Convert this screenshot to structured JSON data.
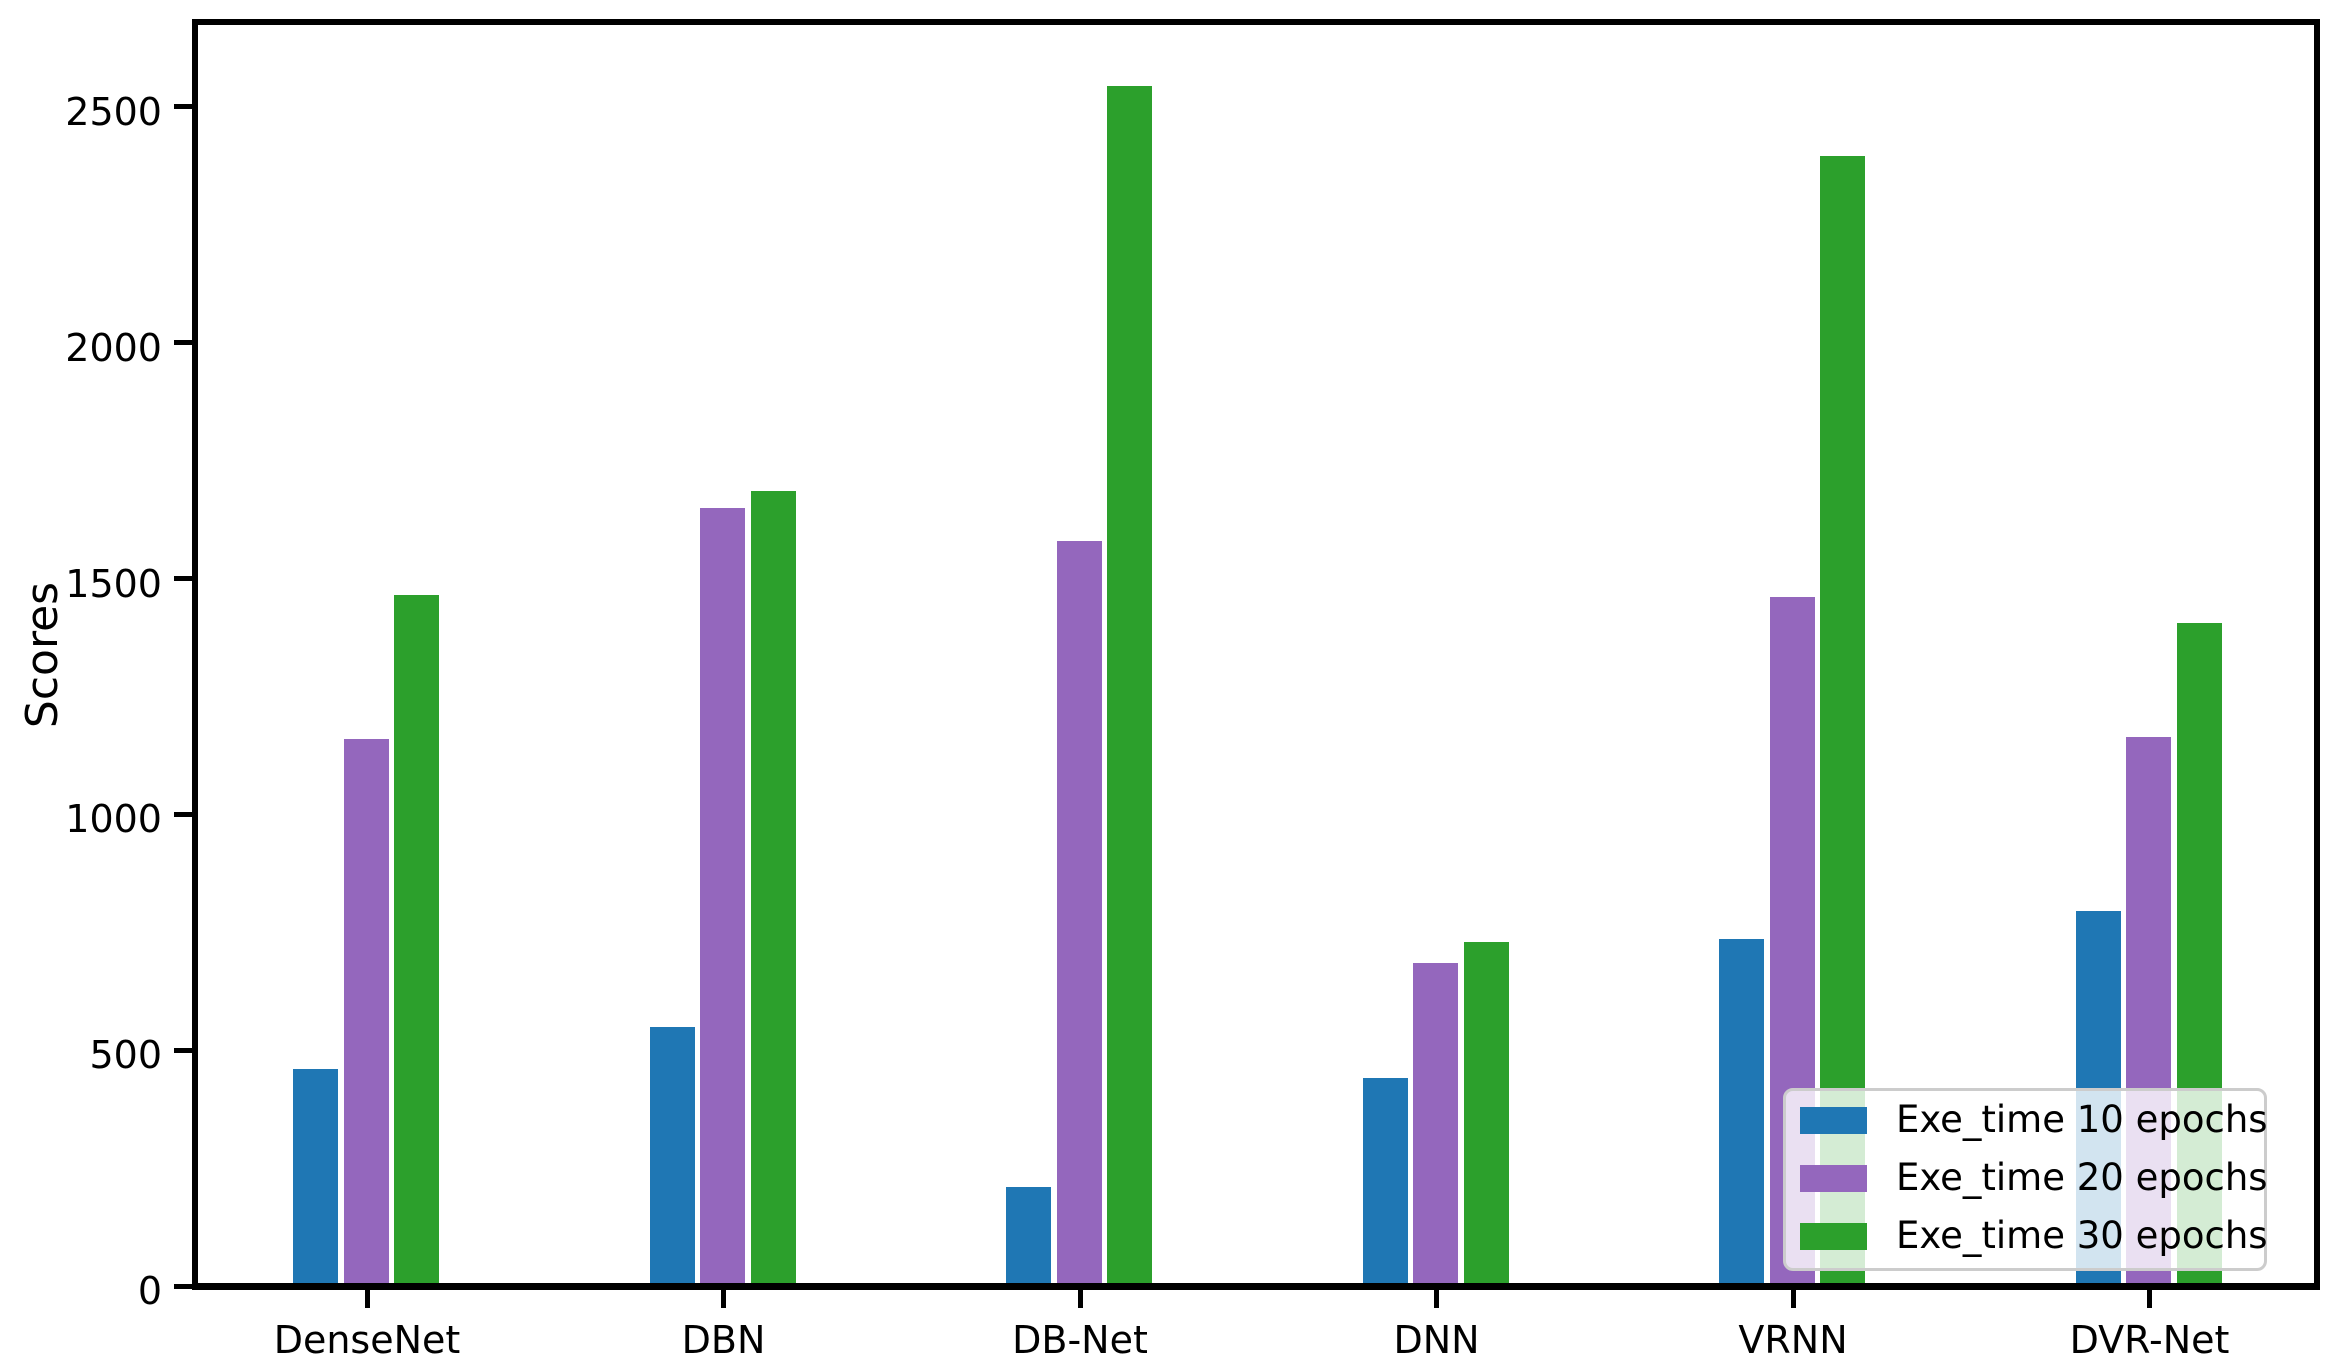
{
  "chart_data": {
    "type": "bar",
    "title": "",
    "xlabel": "",
    "ylabel": "Scores",
    "categories": [
      "DenseNet",
      "DBN",
      "DB-Net",
      "DNN",
      "VRNN",
      "DVR-Net"
    ],
    "series": [
      {
        "name": "Exe_time 10 epochs",
        "color": "#1f77b4",
        "values": [
          460,
          550,
          210,
          440,
          735,
          795
        ]
      },
      {
        "name": "Exe_time 20 epochs",
        "color": "#9467bd",
        "values": [
          1160,
          1650,
          1580,
          685,
          1460,
          1165
        ]
      },
      {
        "name": "Exe_time 30 epochs",
        "color": "#2ca02c",
        "values": [
          1465,
          1685,
          2545,
          730,
          2395,
          1405
        ]
      }
    ],
    "yticks": [
      0,
      500,
      1000,
      1500,
      2000,
      2500
    ],
    "ylim": [
      0,
      2680
    ],
    "grid": false,
    "legend_position": "lower right"
  },
  "colors": {
    "axis": "#000000",
    "text": "#000000",
    "legend_border": "#cccccc",
    "background": "#ffffff"
  }
}
